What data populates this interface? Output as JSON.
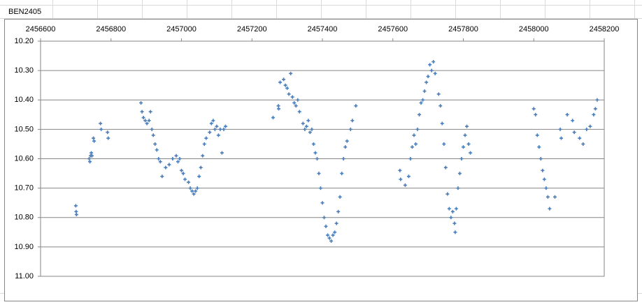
{
  "sheet": {
    "cell_text": "BEN2405"
  },
  "chart_data": {
    "type": "scatter",
    "color": "#4a7ebb",
    "xlim": [
      2456600,
      2458200
    ],
    "xticks": [
      2456600,
      2456800,
      2457000,
      2457200,
      2457400,
      2457600,
      2457800,
      2458000,
      2458200
    ],
    "ylim": [
      10.2,
      11.0
    ],
    "y_reversed": true,
    "yticks": [
      {
        "value": 10.2,
        "label": "10.20"
      },
      {
        "value": 10.3,
        "label": "10.30"
      },
      {
        "value": 10.4,
        "label": "10.40"
      },
      {
        "value": 10.5,
        "label": "10.50"
      },
      {
        "value": 10.6,
        "label": "10.60"
      },
      {
        "value": 10.7,
        "label": "10.70"
      },
      {
        "value": 10.8,
        "label": "10.80"
      },
      {
        "value": 10.9,
        "label": "10.90"
      },
      {
        "value": 11.0,
        "label": "11.00"
      }
    ],
    "grid": true,
    "x": [
      2456700,
      2456701,
      2456702,
      2456738,
      2456740,
      2456742,
      2456744,
      2456746,
      2456750,
      2456752,
      2456770,
      2456772,
      2456790,
      2456792,
      2456885,
      2456888,
      2456892,
      2456897,
      2456902,
      2456908,
      2456912,
      2456916,
      2456920,
      2456925,
      2456930,
      2456935,
      2456940,
      2456945,
      2456955,
      2456965,
      2456975,
      2456985,
      2456990,
      2456995,
      2457000,
      2457005,
      2457010,
      2457020,
      2457025,
      2457030,
      2457035,
      2457040,
      2457045,
      2457050,
      2457055,
      2457060,
      2457065,
      2457070,
      2457080,
      2457085,
      2457090,
      2457095,
      2457100,
      2457105,
      2457110,
      2457115,
      2457120,
      2457125,
      2457260,
      2457275,
      2457276,
      2457280,
      2457290,
      2457295,
      2457300,
      2457305,
      2457310,
      2457315,
      2457320,
      2457325,
      2457330,
      2457335,
      2457345,
      2457350,
      2457355,
      2457360,
      2457365,
      2457370,
      2457375,
      2457380,
      2457385,
      2457390,
      2457395,
      2457400,
      2457405,
      2457410,
      2457415,
      2457420,
      2457425,
      2457430,
      2457435,
      2457440,
      2457445,
      2457450,
      2457455,
      2457460,
      2457465,
      2457470,
      2457480,
      2457485,
      2457495,
      2457620,
      2457622,
      2457635,
      2457645,
      2457650,
      2457655,
      2457660,
      2457665,
      2457670,
      2457675,
      2457680,
      2457685,
      2457690,
      2457695,
      2457700,
      2457705,
      2457710,
      2457715,
      2457720,
      2457730,
      2457735,
      2457740,
      2457745,
      2457750,
      2457755,
      2457760,
      2457765,
      2457770,
      2457775,
      2457777,
      2457780,
      2457785,
      2457790,
      2457795,
      2457800,
      2457805,
      2457810,
      2457815,
      2457820,
      2458000,
      2458005,
      2458010,
      2458015,
      2458020,
      2458025,
      2458030,
      2458035,
      2458040,
      2458045,
      2458060,
      2458075,
      2458078,
      2458095,
      2458110,
      2458115,
      2458130,
      2458140,
      2458150,
      2458160,
      2458170,
      2458175,
      2458180
    ],
    "values": [
      10.76,
      10.78,
      10.79,
      10.6,
      10.61,
      10.59,
      10.58,
      10.59,
      10.53,
      10.54,
      10.48,
      10.5,
      10.51,
      10.53,
      10.41,
      10.44,
      10.46,
      10.47,
      10.48,
      10.47,
      10.44,
      10.5,
      10.52,
      10.55,
      10.57,
      10.6,
      10.61,
      10.66,
      10.63,
      10.62,
      10.6,
      10.59,
      10.61,
      10.6,
      10.64,
      10.65,
      10.67,
      10.68,
      10.7,
      10.71,
      10.72,
      10.71,
      10.7,
      10.66,
      10.63,
      10.59,
      10.55,
      10.53,
      10.51,
      10.48,
      10.47,
      10.5,
      10.49,
      10.52,
      10.5,
      10.58,
      10.5,
      10.49,
      10.46,
      10.42,
      10.43,
      10.34,
      10.33,
      10.35,
      10.36,
      10.38,
      10.31,
      10.39,
      10.41,
      10.42,
      10.4,
      10.44,
      10.48,
      10.5,
      10.49,
      10.47,
      10.51,
      10.5,
      10.55,
      10.58,
      10.6,
      10.65,
      10.7,
      10.75,
      10.8,
      10.83,
      10.86,
      10.87,
      10.88,
      10.86,
      10.85,
      10.82,
      10.78,
      10.73,
      10.65,
      10.6,
      10.56,
      10.54,
      10.5,
      10.47,
      10.42,
      10.64,
      10.67,
      10.69,
      10.66,
      10.6,
      10.56,
      10.52,
      10.55,
      10.5,
      10.45,
      10.41,
      10.4,
      10.37,
      10.34,
      10.32,
      10.28,
      10.3,
      10.27,
      10.31,
      10.38,
      10.42,
      10.48,
      10.55,
      10.63,
      10.72,
      10.77,
      10.8,
      10.78,
      10.82,
      10.85,
      10.77,
      10.7,
      10.65,
      10.6,
      10.56,
      10.52,
      10.49,
      10.55,
      10.58,
      10.43,
      10.45,
      10.52,
      10.56,
      10.6,
      10.64,
      10.67,
      10.7,
      10.73,
      10.77,
      10.73,
      10.5,
      10.53,
      10.45,
      10.47,
      10.51,
      10.53,
      10.55,
      10.5,
      10.49,
      10.45,
      10.43,
      10.4
    ]
  }
}
